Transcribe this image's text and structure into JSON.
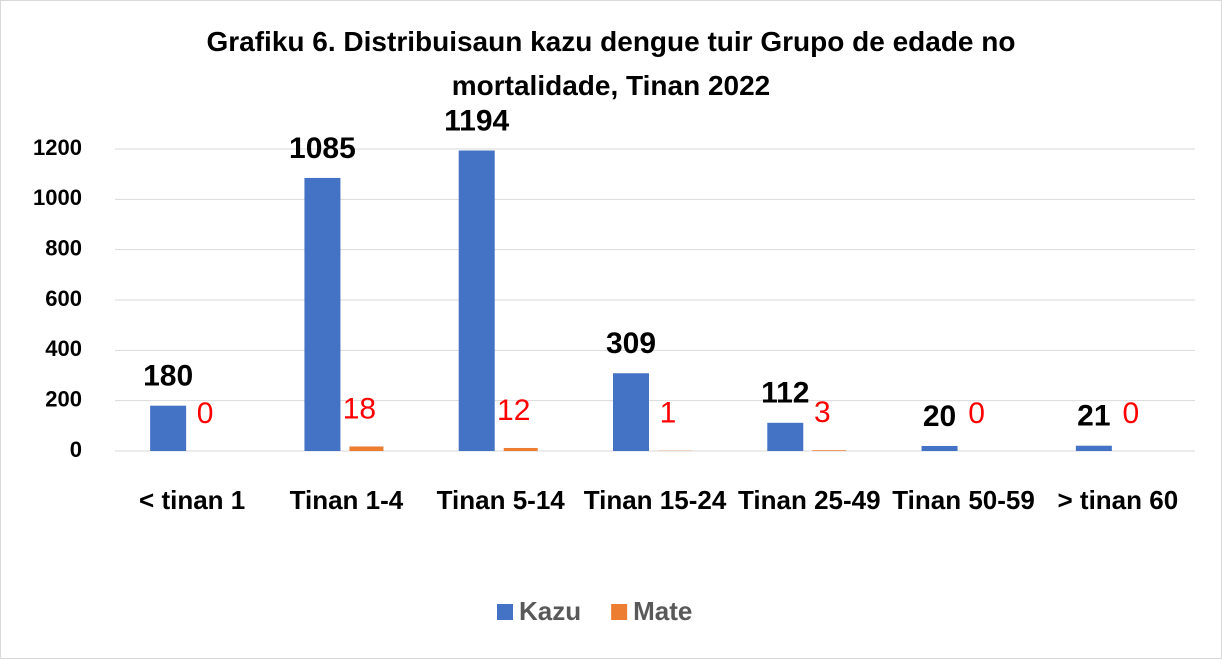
{
  "chart_data": {
    "type": "bar",
    "title": "Grafiku 6. Distribuisaun kazu dengue tuir Grupo de edade no mortalidade, Tinan 2022",
    "categories": [
      "< tinan 1",
      "Tinan 1-4",
      "Tinan 5-14",
      "Tinan 15-24",
      "Tinan 25-49",
      "Tinan 50-59",
      "> tinan 60"
    ],
    "series": [
      {
        "name": "Kazu",
        "color": "#4472c4",
        "values": [
          180,
          1085,
          1194,
          309,
          112,
          20,
          21
        ]
      },
      {
        "name": "Mate",
        "color": "#ed7d31",
        "values": [
          0,
          18,
          12,
          1,
          3,
          0,
          0
        ]
      }
    ],
    "ylim": [
      0,
      1200
    ],
    "yticks": [
      0,
      200,
      400,
      600,
      800,
      1000,
      1200
    ],
    "grid": true,
    "legend": "bottom"
  }
}
